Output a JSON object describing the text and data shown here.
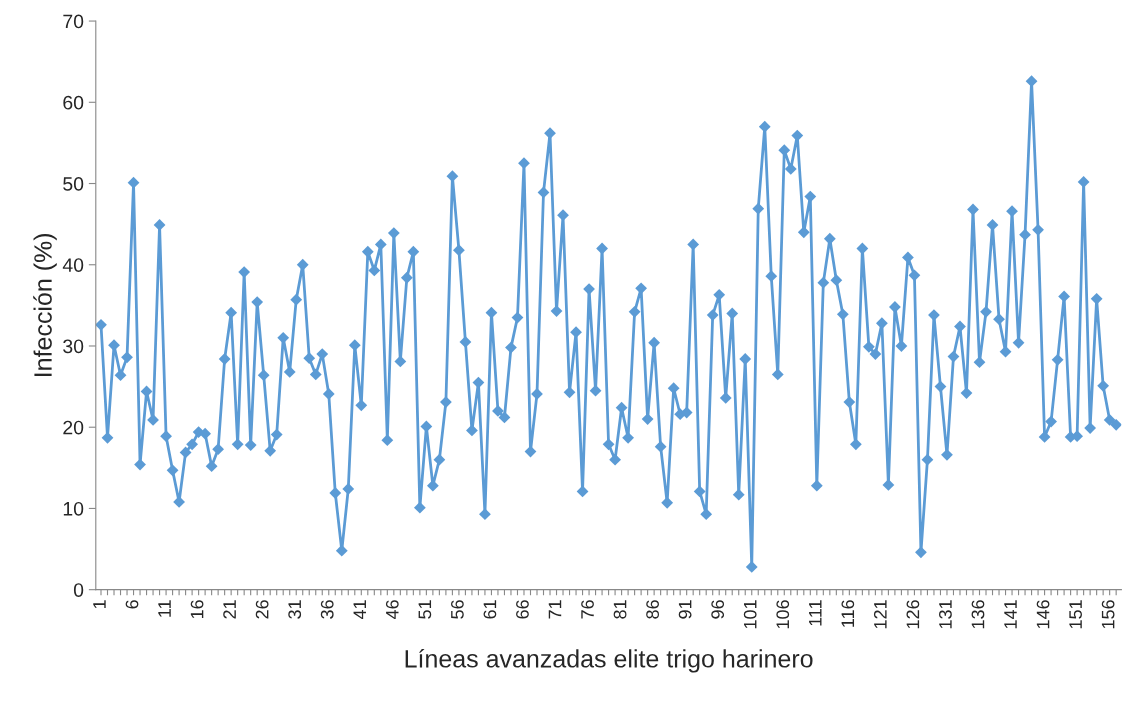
{
  "chart_data": {
    "type": "line",
    "xlabel": "Líneas avanzadas elite trigo harinero",
    "ylabel": "Infección (%)",
    "categories": [
      "1",
      null,
      null,
      null,
      null,
      "6",
      null,
      null,
      null,
      null,
      "11",
      null,
      null,
      null,
      null,
      "16",
      null,
      null,
      null,
      null,
      "21",
      null,
      null,
      null,
      null,
      "26",
      null,
      null,
      null,
      null,
      "31",
      null,
      null,
      null,
      null,
      "36",
      null,
      null,
      null,
      null,
      "41",
      null,
      null,
      null,
      null,
      "46",
      null,
      null,
      null,
      null,
      "51",
      null,
      null,
      null,
      null,
      "56",
      null,
      null,
      null,
      null,
      "61",
      null,
      null,
      null,
      null,
      "66",
      null,
      null,
      null,
      null,
      "71",
      null,
      null,
      null,
      null,
      "76",
      null,
      null,
      null,
      null,
      "81",
      null,
      null,
      null,
      null,
      "86",
      null,
      null,
      null,
      null,
      "91",
      null,
      null,
      null,
      null,
      "96",
      null,
      null,
      null,
      null,
      "101",
      null,
      null,
      null,
      null,
      "106",
      null,
      null,
      null,
      null,
      "111",
      null,
      null,
      null,
      null,
      "116",
      null,
      null,
      null,
      null,
      "121",
      null,
      null,
      null,
      null,
      "126",
      null,
      null,
      null,
      null,
      "131",
      null,
      null,
      null,
      null,
      "136",
      null,
      null,
      null,
      null,
      "141",
      null,
      null,
      null,
      null,
      "146",
      null,
      null,
      null,
      null,
      "151",
      null,
      null,
      null,
      null,
      "156",
      null
    ],
    "series": [
      {
        "color": "#5b9bd5",
        "values": [
          32.6,
          18.7,
          30.1,
          26.4,
          28.6,
          50.1,
          15.4,
          24.4,
          20.9,
          44.9,
          18.9,
          14.7,
          10.8,
          16.9,
          17.9,
          19.4,
          19.2,
          15.2,
          17.3,
          28.4,
          34.1,
          17.9,
          39.1,
          17.8,
          35.4,
          26.4,
          17.1,
          19.1,
          31.0,
          26.8,
          35.7,
          40.0,
          28.5,
          26.5,
          29.0,
          24.1,
          11.9,
          4.8,
          12.4,
          30.1,
          22.7,
          41.6,
          39.3,
          42.5,
          18.4,
          43.9,
          28.1,
          38.4,
          41.6,
          10.1,
          20.1,
          12.8,
          16.0,
          23.1,
          50.9,
          41.8,
          30.5,
          19.6,
          25.5,
          9.3,
          34.1,
          22.0,
          21.2,
          29.8,
          33.5,
          52.5,
          17.0,
          24.1,
          48.9,
          56.2,
          34.3,
          46.1,
          24.3,
          31.7,
          12.1,
          37.0,
          24.5,
          42.0,
          17.9,
          16.0,
          22.4,
          18.7,
          34.2,
          37.1,
          21.0,
          30.4,
          17.6,
          10.7,
          24.8,
          21.6,
          21.8,
          42.5,
          12.1,
          9.3,
          33.8,
          36.3,
          23.6,
          34.0,
          11.7,
          28.4,
          2.8,
          46.9,
          57.0,
          38.6,
          26.5,
          54.1,
          51.8,
          55.9,
          44.0,
          48.4,
          12.8,
          37.8,
          43.2,
          38.1,
          33.9,
          23.1,
          17.9,
          42.0,
          29.9,
          29.0,
          32.8,
          12.9,
          34.8,
          30.0,
          40.9,
          38.7,
          4.6,
          16.0,
          33.8,
          25.0,
          16.6,
          28.7,
          32.4,
          24.2,
          46.8,
          28.0,
          34.2,
          44.9,
          33.3,
          29.3,
          46.6,
          30.4,
          43.7,
          62.6,
          44.3,
          18.8,
          20.7,
          28.3,
          36.1,
          18.8,
          18.9,
          50.2,
          19.9,
          35.8,
          25.1,
          20.9,
          20.3
        ]
      }
    ],
    "ylim": [
      0,
      70
    ],
    "yticks": [
      0,
      10,
      20,
      30,
      40,
      50,
      60,
      70
    ],
    "marker": "diamond",
    "line_style": "solid",
    "grid": false,
    "legend": false
  }
}
